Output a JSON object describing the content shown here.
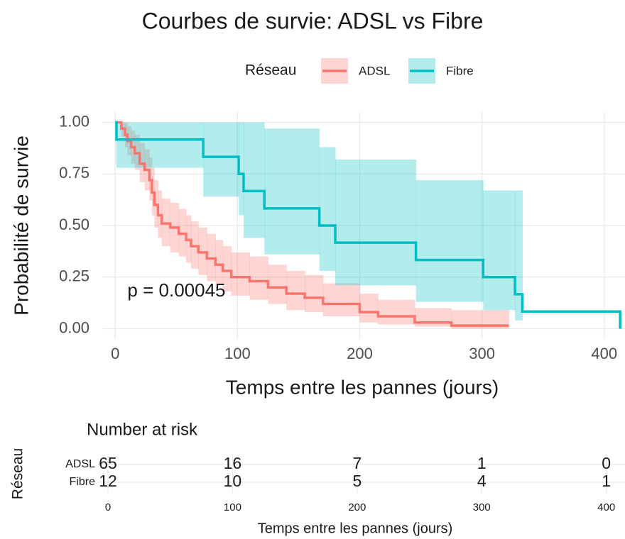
{
  "chart_data": [
    {
      "type": "step",
      "title": "Courbes de survie: ADSL vs Fibre",
      "xlabel": "Temps entre les pannes (jours)",
      "ylabel": "Probabilité de survie",
      "legend_title": "Réseau",
      "annotation": "p = 0.00045",
      "xlim": [
        -10,
        417
      ],
      "ylim": [
        -0.05,
        1.05
      ],
      "xticks": [
        0,
        100,
        200,
        300,
        400
      ],
      "yticks": [
        {
          "value": 0,
          "label": "0.00"
        },
        {
          "value": 0.25,
          "label": "0.25"
        },
        {
          "value": 0.5,
          "label": "0.50"
        },
        {
          "value": 0.75,
          "label": "0.75"
        },
        {
          "value": 1,
          "label": "1.00"
        }
      ],
      "grid": true,
      "series": [
        {
          "name": "ADSL",
          "color": "#f8766d",
          "x": [
            0,
            5,
            8,
            10,
            13,
            16,
            20,
            24,
            28,
            30,
            32,
            35,
            38,
            45,
            52,
            58,
            62,
            68,
            75,
            82,
            88,
            95,
            110,
            125,
            140,
            155,
            170,
            200,
            215,
            245,
            275,
            322
          ],
          "values": [
            1,
            0.97,
            0.94,
            0.91,
            0.88,
            0.85,
            0.8,
            0.77,
            0.72,
            0.66,
            0.6,
            0.55,
            0.51,
            0.49,
            0.46,
            0.43,
            0.4,
            0.37,
            0.34,
            0.31,
            0.28,
            0.25,
            0.23,
            0.2,
            0.17,
            0.15,
            0.12,
            0.08,
            0.06,
            0.03,
            0.015,
            0.015
          ],
          "lower": [
            1,
            0.93,
            0.88,
            0.84,
            0.8,
            0.77,
            0.71,
            0.67,
            0.62,
            0.55,
            0.49,
            0.44,
            0.4,
            0.37,
            0.35,
            0.32,
            0.29,
            0.26,
            0.23,
            0.21,
            0.18,
            0.16,
            0.14,
            0.12,
            0.09,
            0.08,
            0.06,
            0.03,
            0.02,
            0.01,
            0,
            null
          ],
          "upper": [
            1,
            1,
            1,
            0.98,
            0.96,
            0.94,
            0.9,
            0.87,
            0.83,
            0.78,
            0.72,
            0.67,
            0.63,
            0.61,
            0.58,
            0.55,
            0.52,
            0.49,
            0.46,
            0.43,
            0.4,
            0.37,
            0.35,
            0.31,
            0.28,
            0.26,
            0.22,
            0.17,
            0.14,
            0.1,
            0.09,
            null
          ]
        },
        {
          "name": "Fibre",
          "color": "#00bfc4",
          "x": [
            0,
            1,
            72,
            101,
            105,
            122,
            167,
            180,
            246,
            301,
            327,
            333,
            413
          ],
          "values": [
            1,
            0.917,
            0.833,
            0.75,
            0.667,
            0.583,
            0.5,
            0.417,
            0.333,
            0.25,
            0.167,
            0.083,
            0
          ],
          "lower": [
            1,
            0.78,
            0.64,
            0.55,
            0.44,
            0.36,
            0.28,
            0.21,
            0.13,
            0.09,
            0.04,
            null,
            null
          ],
          "upper": [
            1,
            1,
            1,
            1,
            1,
            0.97,
            0.88,
            0.82,
            0.72,
            0.67,
            0.67,
            null,
            null
          ]
        }
      ]
    },
    {
      "type": "risk_table",
      "title": "Number at risk",
      "xlabel": "Temps entre les pannes (jours)",
      "ylabel": "Réseau",
      "xlim": [
        -8,
        415
      ],
      "xticks": [
        0,
        100,
        200,
        300,
        400
      ],
      "series": [
        {
          "name": "ADSL",
          "color": "#f8766d",
          "values": [
            65,
            16,
            7,
            1,
            0
          ]
        },
        {
          "name": "Fibre",
          "color": "#00bfc4",
          "values": [
            12,
            10,
            5,
            4,
            1
          ]
        }
      ]
    }
  ]
}
